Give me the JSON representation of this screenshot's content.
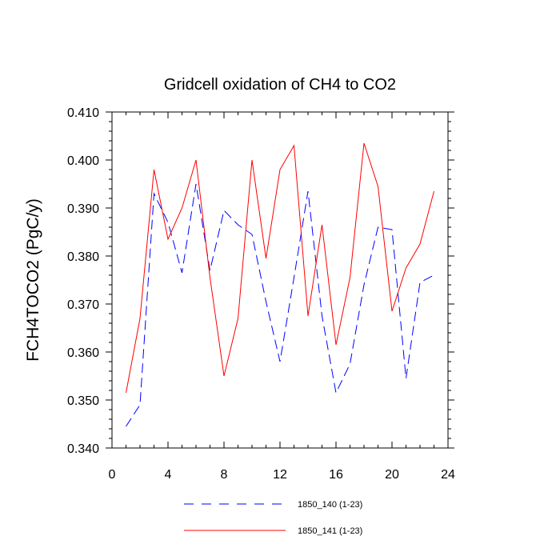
{
  "chart_data": {
    "type": "line",
    "title": "Gridcell oxidation of CH4 to CO2",
    "xlabel": "",
    "ylabel": "FCH4TOCO2  (PgC/y)",
    "xlim": [
      0,
      24
    ],
    "ylim": [
      0.34,
      0.41
    ],
    "x_ticks": [
      0,
      4,
      8,
      12,
      16,
      20,
      24
    ],
    "x_tick_labels": [
      "0",
      "4",
      "8",
      "12",
      "16",
      "20",
      "24"
    ],
    "y_ticks": [
      0.34,
      0.35,
      0.36,
      0.37,
      0.38,
      0.39,
      0.4,
      0.41
    ],
    "y_tick_labels": [
      "0.340",
      "0.350",
      "0.360",
      "0.370",
      "0.380",
      "0.390",
      "0.400",
      "0.410"
    ],
    "x": [
      1,
      2,
      3,
      4,
      5,
      6,
      7,
      8,
      9,
      10,
      11,
      12,
      13,
      14,
      15,
      16,
      17,
      18,
      19,
      20,
      21,
      22,
      23
    ],
    "series": [
      {
        "name": "1850_140 (1-23)",
        "color": "#0000ff",
        "style": "dashed",
        "values": [
          0.3445,
          0.349,
          0.393,
          0.387,
          0.3765,
          0.395,
          0.377,
          0.3895,
          0.3865,
          0.3845,
          0.3705,
          0.358,
          0.3755,
          0.3935,
          0.3675,
          0.3515,
          0.3575,
          0.374,
          0.386,
          0.3855,
          0.3545,
          0.3745,
          0.376
        ]
      },
      {
        "name": "1850_141 (1-23)",
        "color": "#ff0000",
        "style": "solid",
        "values": [
          0.3515,
          0.367,
          0.398,
          0.3835,
          0.39,
          0.4,
          0.3755,
          0.355,
          0.367,
          0.4,
          0.3795,
          0.398,
          0.403,
          0.3675,
          0.3865,
          0.3615,
          0.3755,
          0.4035,
          0.3945,
          0.3685,
          0.3775,
          0.3825,
          0.3935
        ]
      }
    ]
  }
}
